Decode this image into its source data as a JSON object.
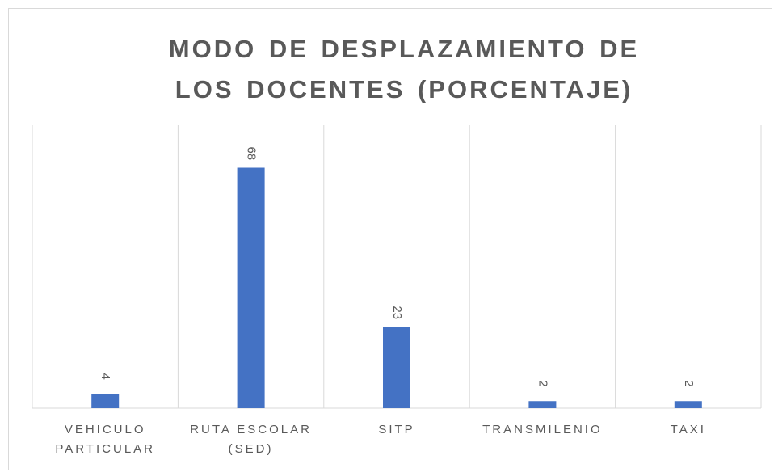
{
  "chart_data": {
    "type": "bar",
    "title": "MODO DE DESPLAZAMIENTO DE LOS DOCENTES (PORCENTAJE)",
    "categories": [
      "VEHICULO PARTICULAR",
      "RUTA ESCOLAR (SED)",
      "SITP",
      "TRANSMILENIO",
      "TAXI"
    ],
    "values": [
      4,
      68,
      23,
      2,
      2
    ],
    "color": "#4472c4",
    "ylim": [
      0,
      80
    ]
  }
}
